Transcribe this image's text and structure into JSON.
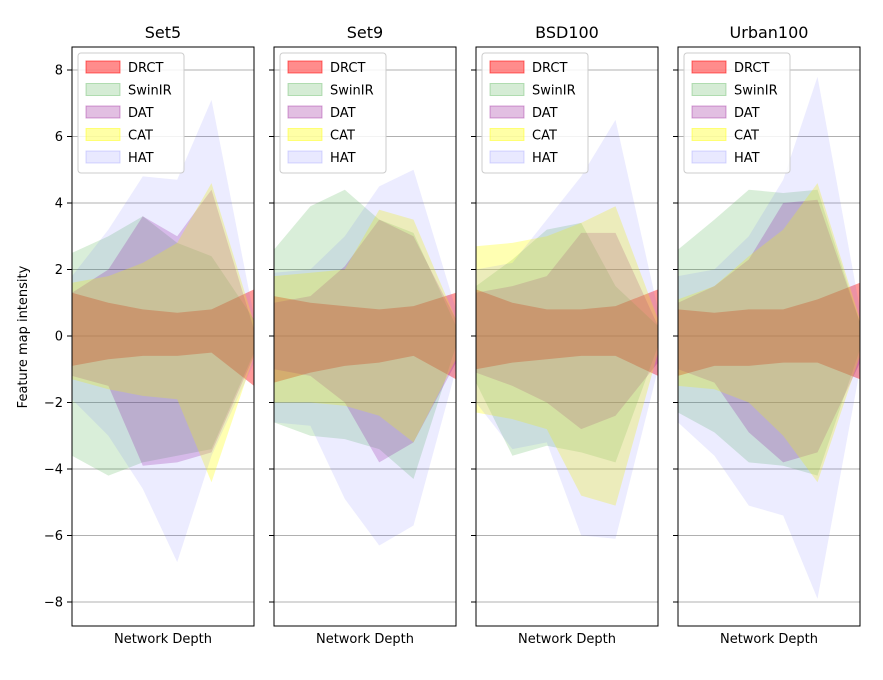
{
  "figure": {
    "ylabel": "Feature map intensity"
  },
  "chart_data": [
    {
      "type": "area",
      "title": "Set5",
      "xlabel": "Network Depth",
      "ylabel": "Feature map intensity",
      "ylim": [
        -8.7,
        8.7
      ],
      "yticks": [
        -8,
        -6,
        -4,
        -2,
        0,
        2,
        4,
        6,
        8
      ],
      "ytick_labels": [
        "−8",
        "−6",
        "−4",
        "−2",
        "0",
        "2",
        "4",
        "6",
        "8"
      ],
      "grid": "horizontal",
      "legend": "top-left",
      "x": [
        0,
        1,
        2,
        3,
        4,
        5,
        6,
        7,
        8
      ],
      "series": [
        {
          "name": "DRCT",
          "color": "#ff0000",
          "upper": [
            1.3,
            1.0,
            0.8,
            0.7,
            0.8,
            1.4
          ],
          "lower": [
            -0.9,
            -0.7,
            -0.6,
            -0.6,
            -0.5,
            -1.5
          ],
          "x": [
            0,
            1.8,
            3.5,
            5.2,
            6.9,
            9
          ]
        },
        {
          "name": "SwinIR",
          "color": "#2ca02c",
          "upper": [
            2.5,
            3.0,
            3.6,
            2.8,
            2.4,
            0.5
          ],
          "lower": [
            -3.6,
            -4.2,
            -3.8,
            -3.6,
            -3.4,
            -0.5
          ],
          "x": [
            0,
            1.8,
            3.5,
            5.2,
            6.9,
            9
          ]
        },
        {
          "name": "DAT",
          "color": "#8b008b",
          "upper": [
            1.3,
            2.0,
            3.6,
            3.0,
            4.4,
            0.2
          ],
          "lower": [
            -1.2,
            -1.5,
            -3.9,
            -3.8,
            -3.5,
            -0.6
          ],
          "x": [
            0,
            1.8,
            3.5,
            5.2,
            6.9,
            9
          ]
        },
        {
          "name": "CAT",
          "color": "#ffff00",
          "upper": [
            1.6,
            1.8,
            2.2,
            2.8,
            4.6,
            0.4
          ],
          "lower": [
            -1.3,
            -1.6,
            -1.8,
            -1.9,
            -4.4,
            -0.6
          ],
          "x": [
            0,
            1.8,
            3.5,
            5.2,
            6.9,
            9
          ]
        },
        {
          "name": "HAT",
          "color": "#6666ff",
          "upper": [
            1.8,
            3.2,
            4.8,
            4.7,
            7.1,
            0.6
          ],
          "lower": [
            -1.9,
            -3.0,
            -4.6,
            -6.8,
            -3.6,
            -0.8
          ],
          "x": [
            0,
            1.8,
            3.5,
            5.2,
            6.9,
            9
          ]
        }
      ]
    },
    {
      "type": "area",
      "title": "Set9",
      "xlabel": "Network Depth",
      "ylim": [
        -8.7,
        8.7
      ],
      "grid": "horizontal",
      "legend": "top-left",
      "series": [
        {
          "name": "DRCT",
          "color": "#ff0000",
          "upper": [
            1.2,
            1.0,
            0.9,
            0.8,
            0.9,
            1.3
          ],
          "lower": [
            -1.4,
            -1.1,
            -0.9,
            -0.8,
            -0.6,
            -1.3
          ],
          "x": [
            0,
            1.8,
            3.5,
            5.2,
            6.9,
            9
          ]
        },
        {
          "name": "SwinIR",
          "color": "#2ca02c",
          "upper": [
            2.6,
            3.9,
            4.4,
            3.5,
            3.1,
            0.3
          ],
          "lower": [
            -2.6,
            -3.0,
            -3.1,
            -3.4,
            -4.3,
            -0.3
          ],
          "x": [
            0,
            1.8,
            3.5,
            5.2,
            6.9,
            9
          ]
        },
        {
          "name": "DAT",
          "color": "#8b008b",
          "upper": [
            1.0,
            1.2,
            2.1,
            3.5,
            3.0,
            0.5
          ],
          "lower": [
            -1.0,
            -1.2,
            -2.0,
            -3.8,
            -3.2,
            -0.8
          ],
          "x": [
            0,
            1.8,
            3.5,
            5.2,
            6.9,
            9
          ]
        },
        {
          "name": "CAT",
          "color": "#ffff00",
          "upper": [
            1.8,
            1.9,
            2.0,
            3.8,
            3.5,
            0.5
          ],
          "lower": [
            -2.0,
            -2.0,
            -2.1,
            -2.4,
            -3.2,
            -0.7
          ],
          "x": [
            0,
            1.8,
            3.5,
            5.2,
            6.9,
            9
          ]
        },
        {
          "name": "HAT",
          "color": "#6666ff",
          "upper": [
            1.9,
            2.0,
            3.0,
            4.5,
            5.0,
            0.8
          ],
          "lower": [
            -2.6,
            -2.7,
            -4.9,
            -6.3,
            -5.7,
            -1.0
          ],
          "x": [
            0,
            1.8,
            3.5,
            5.2,
            6.9,
            9
          ]
        }
      ]
    },
    {
      "type": "area",
      "title": "BSD100",
      "xlabel": "Network Depth",
      "ylim": [
        -8.7,
        8.7
      ],
      "grid": "horizontal",
      "legend": "top-left",
      "series": [
        {
          "name": "DRCT",
          "color": "#ff0000",
          "upper": [
            1.4,
            1.0,
            0.8,
            0.8,
            0.9,
            1.4
          ],
          "lower": [
            -1.0,
            -0.8,
            -0.7,
            -0.6,
            -0.6,
            -1.2
          ],
          "x": [
            0,
            1.8,
            3.5,
            5.2,
            6.9,
            9
          ]
        },
        {
          "name": "SwinIR",
          "color": "#2ca02c",
          "upper": [
            1.5,
            2.3,
            3.2,
            3.4,
            1.5,
            0.3
          ],
          "lower": [
            -1.4,
            -3.6,
            -3.3,
            -3.5,
            -3.8,
            -0.3
          ],
          "x": [
            0,
            1.8,
            3.5,
            5.2,
            6.9,
            9
          ]
        },
        {
          "name": "DAT",
          "color": "#8b008b",
          "upper": [
            1.3,
            1.5,
            1.8,
            3.1,
            3.1,
            0.3
          ],
          "lower": [
            -1.1,
            -1.5,
            -2.0,
            -2.8,
            -2.4,
            -0.8
          ],
          "x": [
            0,
            1.8,
            3.5,
            5.2,
            6.9,
            9
          ]
        },
        {
          "name": "CAT",
          "color": "#ffff00",
          "upper": [
            2.7,
            2.8,
            3.0,
            3.4,
            3.9,
            0.5
          ],
          "lower": [
            -2.3,
            -2.5,
            -2.8,
            -4.8,
            -5.1,
            -0.5
          ],
          "x": [
            0,
            1.8,
            3.5,
            5.2,
            6.9,
            9
          ]
        },
        {
          "name": "HAT",
          "color": "#6666ff",
          "upper": [
            2.0,
            2.2,
            3.5,
            4.8,
            6.5,
            0.8
          ],
          "lower": [
            -2.0,
            -3.4,
            -3.2,
            -6.0,
            -6.1,
            -1.0
          ],
          "x": [
            0,
            1.8,
            3.5,
            5.2,
            6.9,
            9
          ]
        }
      ]
    },
    {
      "type": "area",
      "title": "Urban100",
      "xlabel": "Network Depth",
      "ylim": [
        -8.7,
        8.7
      ],
      "grid": "horizontal",
      "legend": "top-left",
      "series": [
        {
          "name": "DRCT",
          "color": "#ff0000",
          "upper": [
            0.8,
            0.7,
            0.8,
            0.8,
            1.1,
            1.6
          ],
          "lower": [
            -1.2,
            -0.9,
            -0.9,
            -0.8,
            -0.8,
            -1.3
          ],
          "x": [
            0,
            1.8,
            3.5,
            5.2,
            6.9,
            9
          ]
        },
        {
          "name": "SwinIR",
          "color": "#2ca02c",
          "upper": [
            2.6,
            3.5,
            4.4,
            4.3,
            4.4,
            0.4
          ],
          "lower": [
            -2.3,
            -2.9,
            -3.8,
            -3.9,
            -4.2,
            -0.4
          ],
          "x": [
            0,
            1.8,
            3.5,
            5.2,
            6.9,
            9
          ]
        },
        {
          "name": "DAT",
          "color": "#8b008b",
          "upper": [
            1.0,
            1.5,
            2.3,
            4.0,
            4.1,
            0.4
          ],
          "lower": [
            -1.0,
            -1.4,
            -2.9,
            -3.8,
            -3.5,
            -0.8
          ],
          "x": [
            0,
            1.8,
            3.5,
            5.2,
            6.9,
            9
          ]
        },
        {
          "name": "CAT",
          "color": "#ffff00",
          "upper": [
            1.1,
            1.5,
            2.4,
            3.2,
            4.6,
            0.5
          ],
          "lower": [
            -1.5,
            -1.6,
            -2.0,
            -3.0,
            -4.4,
            -0.6
          ],
          "x": [
            0,
            1.8,
            3.5,
            5.2,
            6.9,
            9
          ]
        },
        {
          "name": "HAT",
          "color": "#6666ff",
          "upper": [
            1.8,
            2.0,
            3.0,
            4.7,
            7.8,
            0.8
          ],
          "lower": [
            -2.6,
            -3.6,
            -5.1,
            -5.4,
            -7.9,
            -1.0
          ],
          "x": [
            0,
            1.8,
            3.5,
            5.2,
            6.9,
            9
          ]
        }
      ]
    }
  ]
}
